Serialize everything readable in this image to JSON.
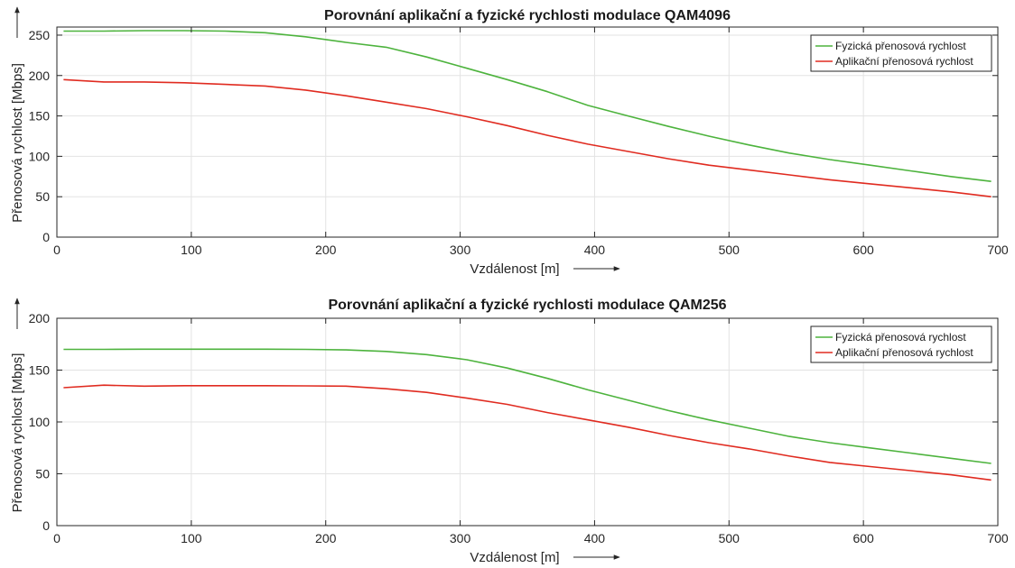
{
  "chart_data": [
    {
      "type": "line",
      "title": "Porovnání aplikační a fyzické rychlosti modulace QAM4096",
      "xlabel": "Vzdálenost [m]",
      "ylabel": "Přenosová rychlost [Mbps]",
      "xlim": [
        0,
        700
      ],
      "ylim": [
        0,
        260
      ],
      "xticks": [
        0,
        100,
        200,
        300,
        400,
        500,
        600,
        700
      ],
      "yticks": [
        0,
        50,
        100,
        150,
        200,
        250
      ],
      "grid": true,
      "legend_position": "top-right",
      "colors": {
        "fyz": "#4db33d",
        "apl": "#e02b20"
      },
      "series": [
        {
          "name": "Fyzická přenosová rychlost",
          "color": "#4db33d",
          "x": [
            5,
            35,
            65,
            95,
            125,
            155,
            185,
            215,
            245,
            275,
            305,
            335,
            365,
            395,
            425,
            455,
            485,
            515,
            545,
            575,
            605,
            635,
            665,
            695
          ],
          "y": [
            255,
            255,
            255.5,
            255.5,
            255,
            253,
            248,
            241,
            235,
            223,
            209,
            195,
            180,
            163,
            150,
            137,
            125,
            114,
            104,
            96,
            89,
            82,
            75,
            69
          ]
        },
        {
          "name": "Aplikační přenosová rychlost",
          "color": "#e02b20",
          "x": [
            5,
            35,
            65,
            95,
            125,
            155,
            185,
            215,
            245,
            275,
            305,
            335,
            365,
            395,
            425,
            455,
            485,
            515,
            545,
            575,
            605,
            635,
            665,
            695
          ],
          "y": [
            195,
            192,
            192,
            191,
            189,
            187,
            182,
            175,
            167,
            159,
            149,
            138,
            126,
            115,
            106,
            97,
            89,
            83,
            77,
            71,
            66,
            61,
            56,
            50
          ]
        }
      ]
    },
    {
      "type": "line",
      "title": "Porovnání aplikační a fyzické rychlosti modulace QAM256",
      "xlabel": "Vzdálenost [m]",
      "ylabel": "Přenosová rychlost [Mbps]",
      "xlim": [
        0,
        700
      ],
      "ylim": [
        0,
        200
      ],
      "xticks": [
        0,
        100,
        200,
        300,
        400,
        500,
        600,
        700
      ],
      "yticks": [
        0,
        50,
        100,
        150,
        200
      ],
      "grid": true,
      "legend_position": "top-right",
      "colors": {
        "fyz": "#4db33d",
        "apl": "#e02b20"
      },
      "series": [
        {
          "name": "Fyzická přenosová rychlost",
          "color": "#4db33d",
          "x": [
            5,
            35,
            65,
            95,
            125,
            155,
            185,
            215,
            245,
            275,
            305,
            335,
            365,
            395,
            425,
            455,
            485,
            515,
            545,
            575,
            605,
            635,
            665,
            695
          ],
          "y": [
            170,
            170,
            170.2,
            170.2,
            170.2,
            170.2,
            170,
            169.5,
            168,
            165,
            160,
            152,
            142,
            131,
            121,
            111,
            102,
            94,
            86,
            80,
            75,
            70,
            65,
            60
          ]
        },
        {
          "name": "Aplikační přenosová rychlost",
          "color": "#e02b20",
          "x": [
            5,
            35,
            65,
            95,
            125,
            155,
            185,
            215,
            245,
            275,
            305,
            335,
            365,
            395,
            425,
            455,
            485,
            515,
            545,
            575,
            605,
            635,
            665,
            695
          ],
          "y": [
            133,
            135.5,
            134.5,
            135,
            135,
            135,
            134.8,
            134.5,
            132,
            128.5,
            123,
            117,
            109,
            102,
            95,
            87,
            80,
            74,
            67,
            61,
            57,
            53,
            49,
            44
          ]
        }
      ]
    }
  ]
}
